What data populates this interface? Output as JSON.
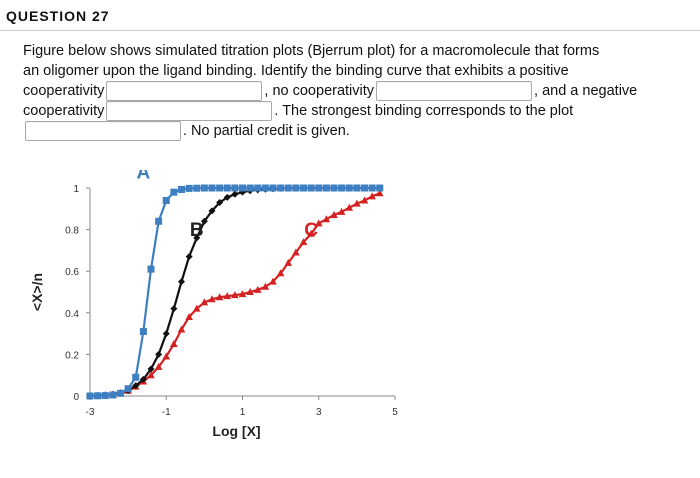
{
  "question": {
    "header": "QUESTION 27",
    "line1": "Figure below shows simulated titration plots (Bjerrum plot) for a macromolecule that forms",
    "line2": "an oligomer upon the ligand binding.  Identify the binding curve that exhibits a positive",
    "line3_a": "cooperativity",
    "line3_b": ", no cooperativity",
    "line3_c": ", and a negative",
    "line4_a": "cooperativity",
    "line4_b": ". The strongest binding corresponds to the plot",
    "line5_b": ". No partial credit is given.",
    "answers": {
      "positive": "",
      "none": "",
      "negative": "",
      "strongest": ""
    }
  },
  "chart_data": {
    "type": "line",
    "title": "",
    "xlabel": "Log [X]",
    "ylabel": "<X>/n",
    "xlim": [
      -3,
      5
    ],
    "ylim": [
      0,
      1
    ],
    "xticks": [
      -3,
      -1,
      1,
      3,
      5
    ],
    "yticks": [
      0,
      0.2,
      0.4,
      0.6,
      0.8,
      1
    ],
    "ytick_labels": [
      "0",
      "0.2",
      "0.4",
      "0.6",
      "0.8",
      "1"
    ],
    "grid": false,
    "series": [
      {
        "name": "A",
        "color": "#3d7fc1",
        "marker": "square",
        "x": [
          -3,
          -2.8,
          -2.6,
          -2.4,
          -2.2,
          -2.0,
          -1.8,
          -1.6,
          -1.4,
          -1.2,
          -1.0,
          -0.8,
          -0.6,
          -0.4,
          -0.2,
          0,
          0.2,
          0.4,
          0.6,
          0.8,
          1,
          1.2,
          1.4,
          1.6,
          1.8,
          2,
          2.2,
          2.4,
          2.6,
          2.8,
          3,
          3.2,
          3.4,
          3.6,
          3.8,
          4,
          4.2,
          4.4,
          4.6
        ],
        "y": [
          0,
          0.001,
          0.002,
          0.005,
          0.013,
          0.035,
          0.09,
          0.31,
          0.61,
          0.84,
          0.94,
          0.98,
          0.993,
          0.998,
          0.999,
          1,
          1,
          1,
          1,
          1,
          1,
          1,
          1,
          1,
          1,
          1,
          1,
          1,
          1,
          1,
          1,
          1,
          1,
          1,
          1,
          1,
          1,
          1,
          1
        ]
      },
      {
        "name": "B",
        "color": "#111111",
        "marker": "diamond",
        "x": [
          -3,
          -2.8,
          -2.6,
          -2.4,
          -2.2,
          -2.0,
          -1.8,
          -1.6,
          -1.4,
          -1.2,
          -1.0,
          -0.8,
          -0.6,
          -0.4,
          -0.2,
          0,
          0.2,
          0.4,
          0.6,
          0.8,
          1,
          1.2,
          1.4,
          1.6,
          1.8,
          2,
          2.2,
          2.4,
          2.6,
          2.8,
          3,
          3.2,
          3.4,
          3.6,
          3.8,
          4,
          4.2,
          4.4,
          4.6
        ],
        "y": [
          0,
          0.002,
          0.004,
          0.008,
          0.015,
          0.026,
          0.05,
          0.08,
          0.13,
          0.2,
          0.3,
          0.42,
          0.55,
          0.67,
          0.76,
          0.84,
          0.89,
          0.93,
          0.955,
          0.97,
          0.98,
          0.987,
          0.991,
          0.994,
          0.996,
          0.998,
          0.999,
          1,
          1,
          1,
          1,
          1,
          1,
          1,
          1,
          1,
          1,
          1,
          1
        ]
      },
      {
        "name": "C",
        "color": "#d42121",
        "marker": "triangle",
        "x": [
          -3,
          -2.8,
          -2.6,
          -2.4,
          -2.2,
          -2.0,
          -1.8,
          -1.6,
          -1.4,
          -1.2,
          -1.0,
          -0.8,
          -0.6,
          -0.4,
          -0.2,
          0,
          0.2,
          0.4,
          0.6,
          0.8,
          1,
          1.2,
          1.4,
          1.6,
          1.8,
          2,
          2.2,
          2.4,
          2.6,
          2.8,
          3,
          3.2,
          3.4,
          3.6,
          3.8,
          4,
          4.2,
          4.4,
          4.6
        ],
        "y": [
          0,
          0.002,
          0.004,
          0.008,
          0.014,
          0.025,
          0.045,
          0.07,
          0.1,
          0.14,
          0.19,
          0.25,
          0.32,
          0.38,
          0.42,
          0.45,
          0.465,
          0.475,
          0.48,
          0.485,
          0.49,
          0.5,
          0.51,
          0.525,
          0.55,
          0.59,
          0.64,
          0.69,
          0.74,
          0.78,
          0.83,
          0.85,
          0.87,
          0.885,
          0.905,
          0.925,
          0.94,
          0.96,
          0.975
        ]
      }
    ]
  }
}
